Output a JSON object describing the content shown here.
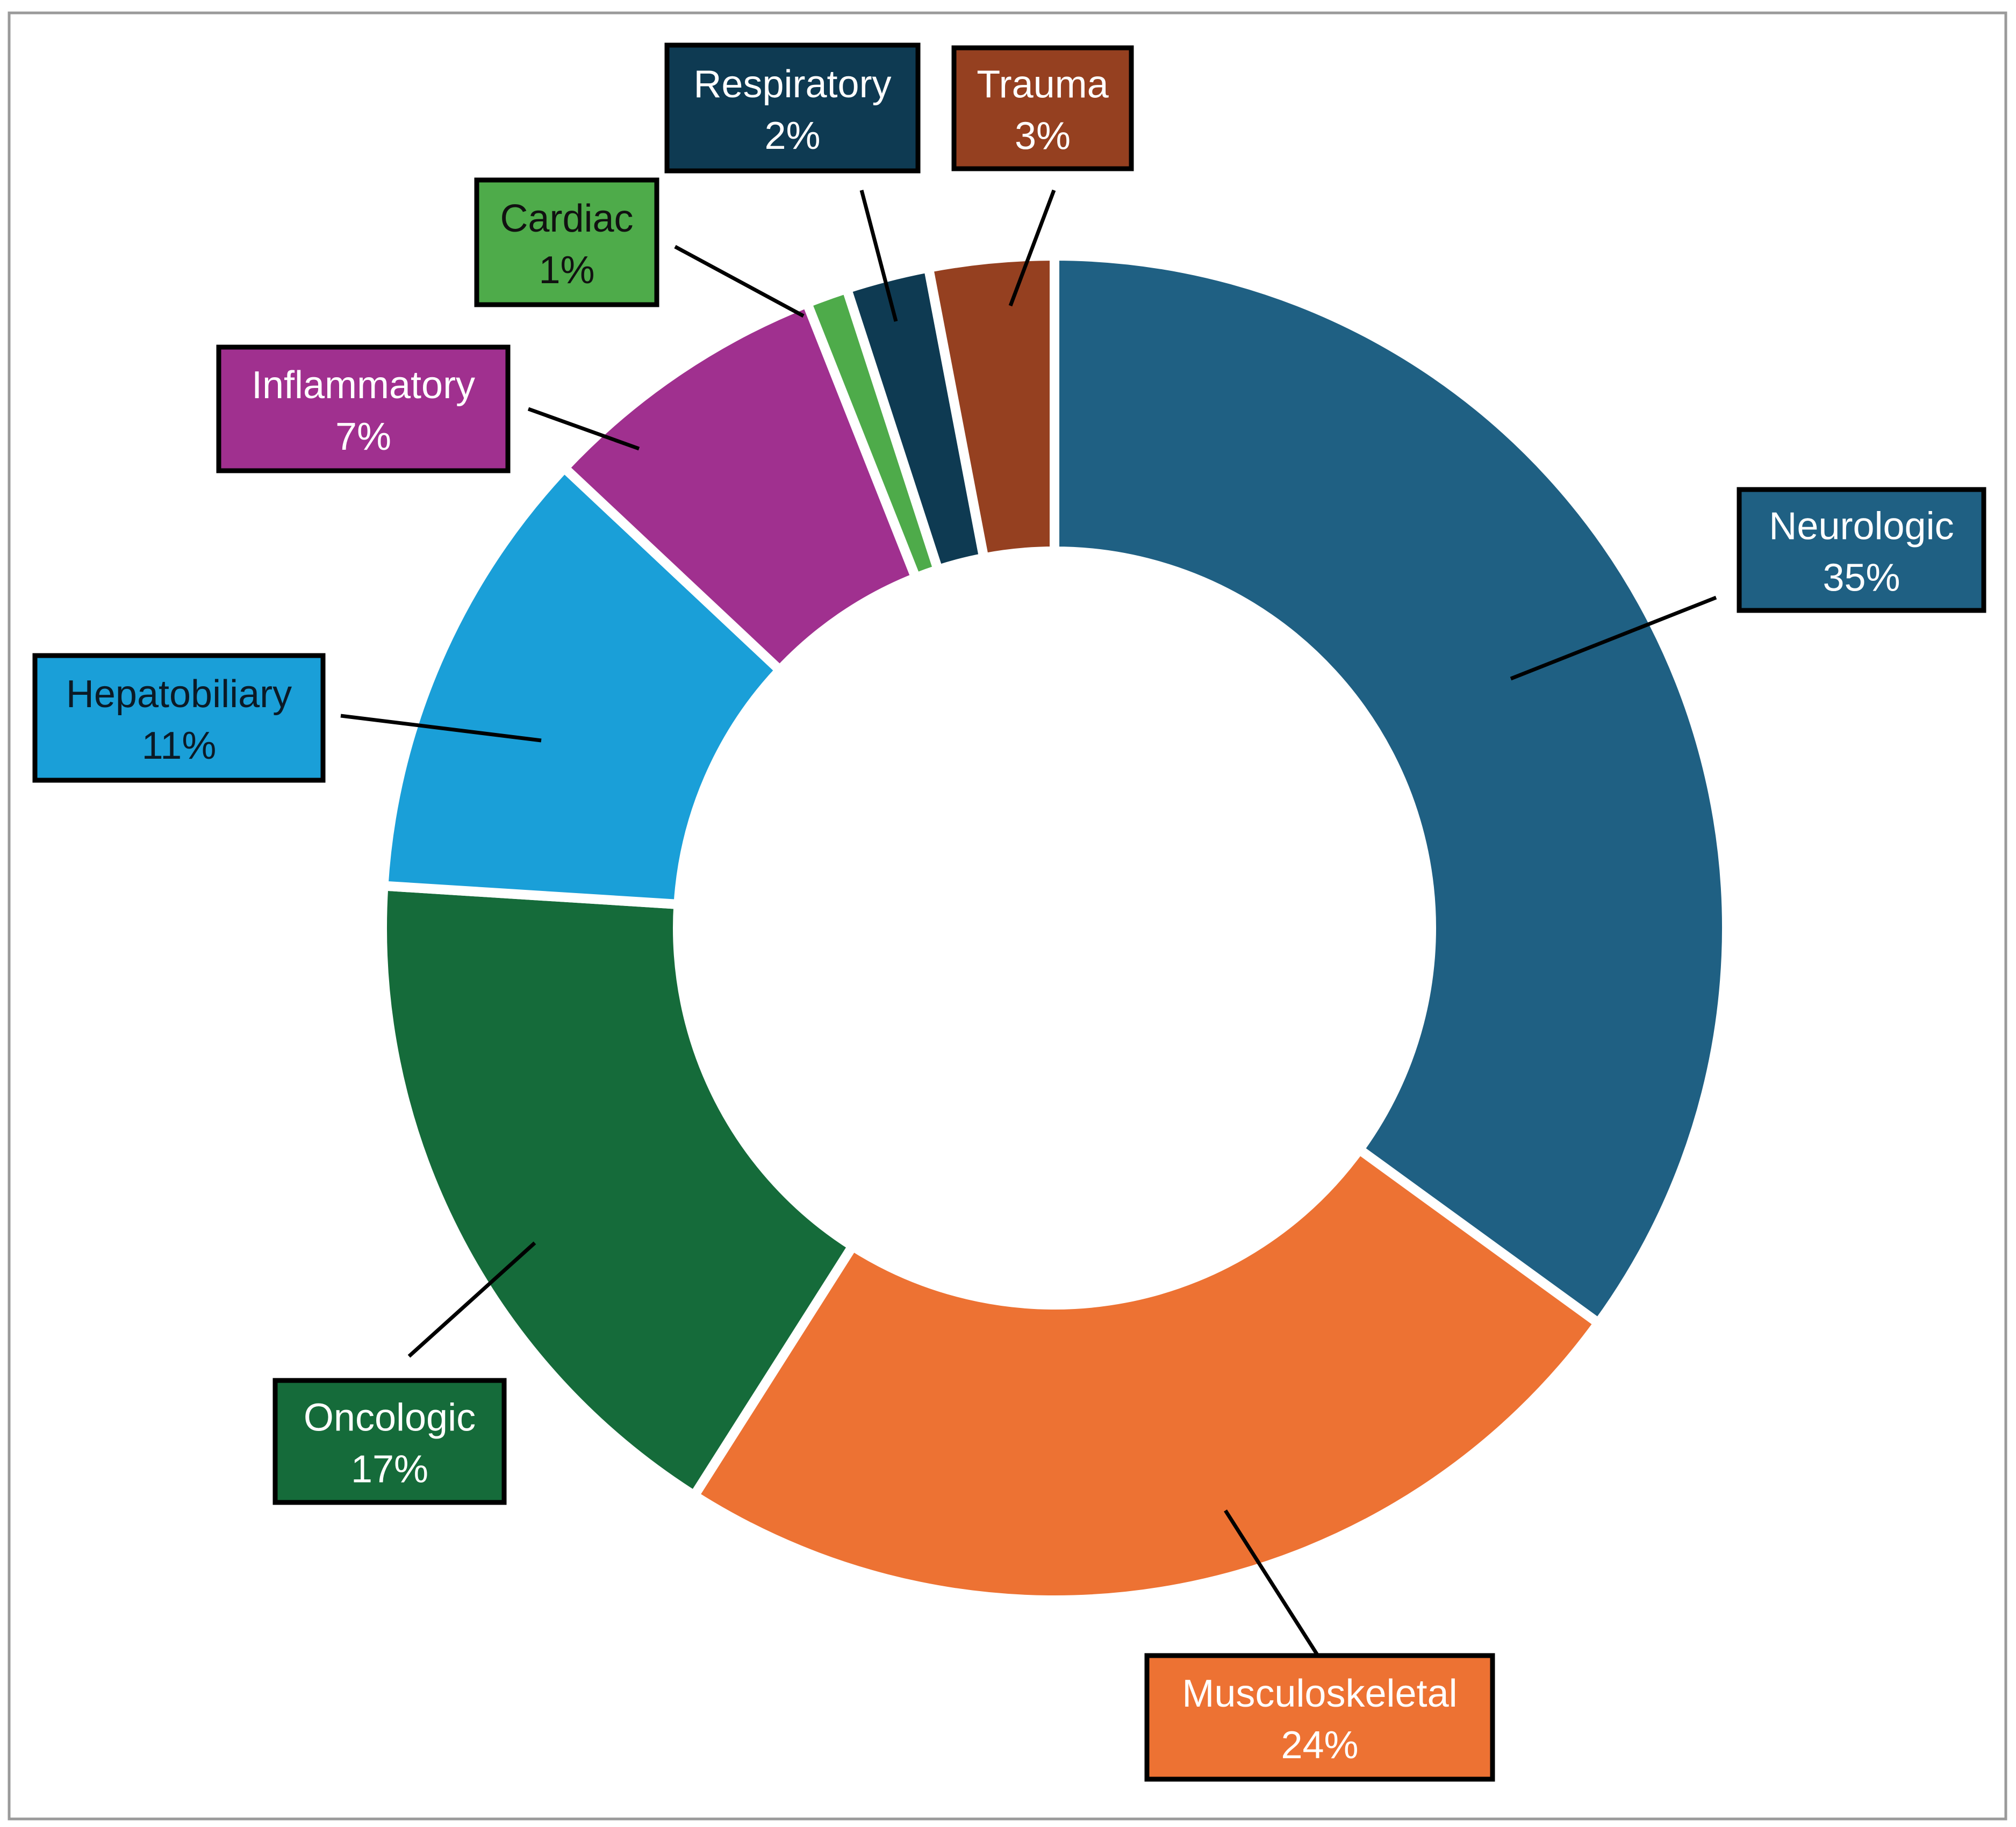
{
  "chart_data": {
    "type": "pie",
    "donut": true,
    "title": "",
    "start": "top",
    "direction": "clockwise",
    "slices": [
      {
        "label": "Neurologic",
        "value": 35,
        "display": "35%",
        "color": "#1F6083",
        "text_color": "#FFFFFF"
      },
      {
        "label": "Musculoskeletal",
        "value": 24,
        "display": "24%",
        "color": "#ED7233",
        "text_color": "#FFFFFF"
      },
      {
        "label": "Oncologic",
        "value": 17,
        "display": "17%",
        "color": "#156B3A",
        "text_color": "#FFFFFF"
      },
      {
        "label": "Hepatobiliary",
        "value": 11,
        "display": "11%",
        "color": "#1A9FD8",
        "text_color": "#0B1A26"
      },
      {
        "label": "Inflammatory",
        "value": 7,
        "display": "7%",
        "color": "#A0308F",
        "text_color": "#FFFFFF"
      },
      {
        "label": "Cardiac",
        "value": 1,
        "display": "1%",
        "color": "#4EAB4A",
        "text_color": "#111111"
      },
      {
        "label": "Respiratory",
        "value": 2,
        "display": "2%",
        "color": "#0E3A52",
        "text_color": "#FFFFFF"
      },
      {
        "label": "Trauma",
        "value": 3,
        "display": "3%",
        "color": "#954020",
        "text_color": "#FFFFFF"
      }
    ]
  }
}
